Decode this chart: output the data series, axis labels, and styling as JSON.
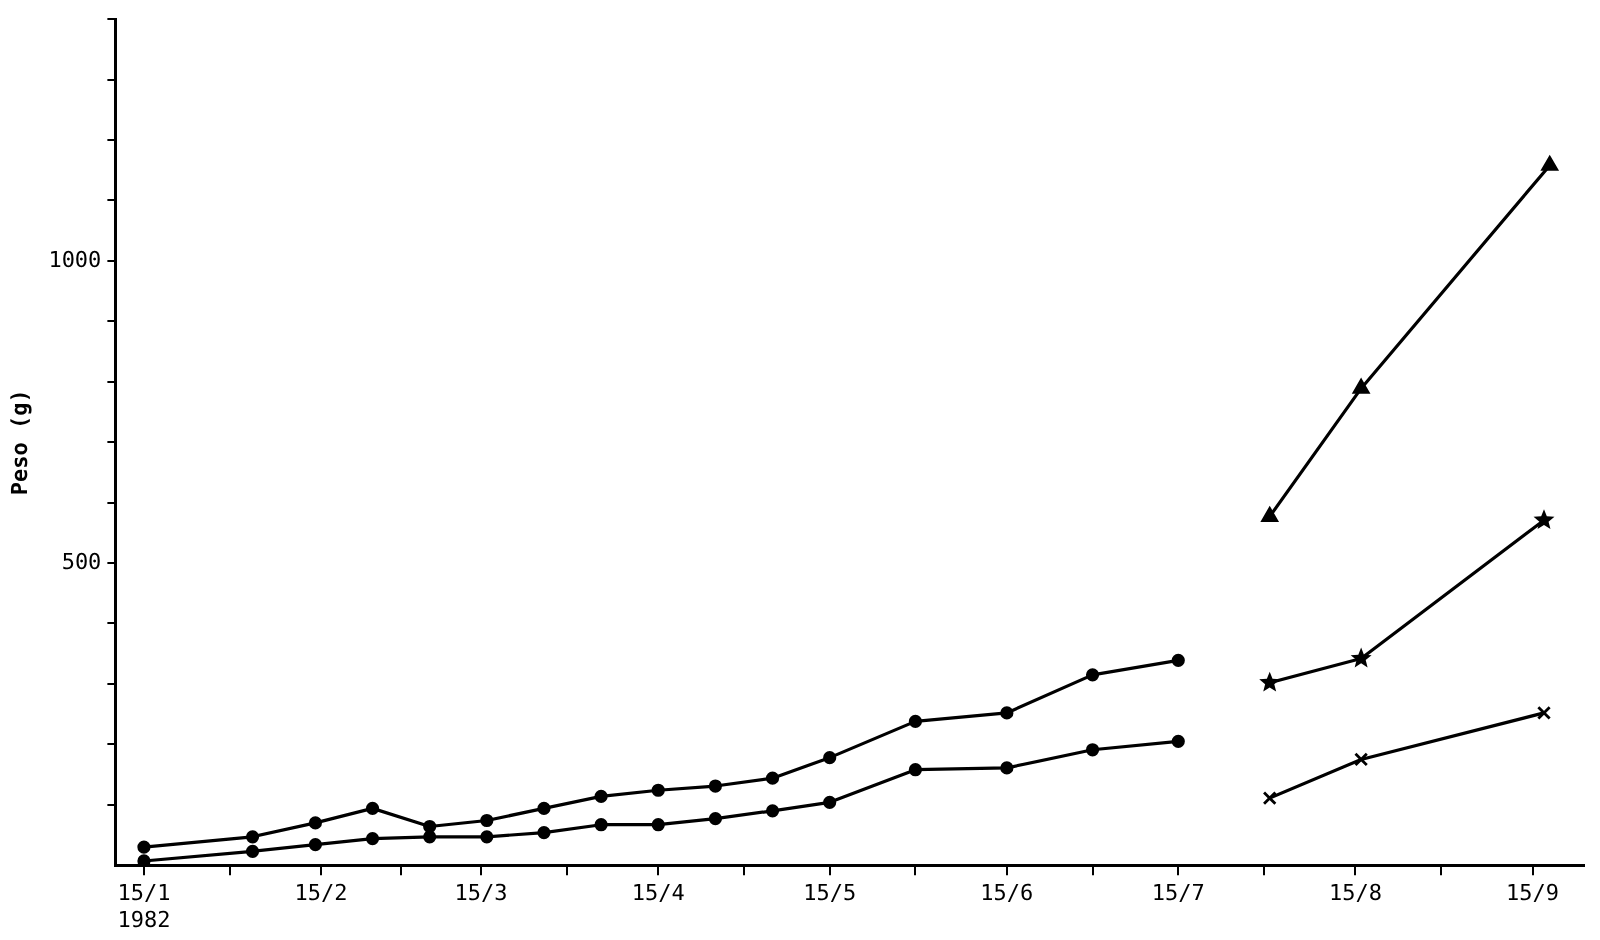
{
  "chart_data": {
    "type": "line",
    "ylabel": "Peso (g)",
    "xlim": [
      "1982-01-10",
      "1982-09-24"
    ],
    "xticks": [
      {
        "value": "1982-01-15",
        "label": "15/1\n1982"
      },
      {
        "value": "1982-01-30",
        "label": null
      },
      {
        "value": "1982-02-15",
        "label": "15/2"
      },
      {
        "value": "1982-03-01",
        "label": null
      },
      {
        "value": "1982-03-15",
        "label": "15/3"
      },
      {
        "value": "1982-03-30",
        "label": null
      },
      {
        "value": "1982-04-15",
        "label": "15/4"
      },
      {
        "value": "1982-04-30",
        "label": null
      },
      {
        "value": "1982-05-15",
        "label": "15/5"
      },
      {
        "value": "1982-05-30",
        "label": null
      },
      {
        "value": "1982-06-15",
        "label": "15/6"
      },
      {
        "value": "1982-06-30",
        "label": null
      },
      {
        "value": "1982-07-15",
        "label": "15/7"
      },
      {
        "value": "1982-07-30",
        "label": null
      },
      {
        "value": "1982-08-15",
        "label": "15/8"
      },
      {
        "value": "1982-08-30",
        "label": null
      },
      {
        "value": "1982-09-15",
        "label": "15/9"
      }
    ],
    "ylim": [
      0,
      1400
    ],
    "yticks": [
      {
        "value": 100,
        "label": null
      },
      {
        "value": 200,
        "label": null
      },
      {
        "value": 300,
        "label": null
      },
      {
        "value": 400,
        "label": null
      },
      500,
      {
        "value": 600,
        "label": null
      },
      {
        "value": 700,
        "label": null
      },
      {
        "value": 800,
        "label": null
      },
      {
        "value": 900,
        "label": null
      },
      1000,
      {
        "value": 1100,
        "label": null
      },
      {
        "value": 1200,
        "label": null
      },
      {
        "value": 1300,
        "label": null
      },
      {
        "value": 1400,
        "label": null
      }
    ],
    "grid": false,
    "legend": false,
    "line_style": "solid",
    "series": [
      {
        "color": "#000000",
        "marker": "circle",
        "x": [
          "1982-01-15",
          "1982-02-03",
          "1982-02-14",
          "1982-02-24",
          "1982-03-06",
          "1982-03-16",
          "1982-03-26",
          "1982-04-05",
          "1982-04-15",
          "1982-04-25",
          "1982-05-05",
          "1982-05-15",
          "1982-05-30",
          "1982-06-15",
          "1982-06-30",
          "1982-07-15"
        ],
        "values": [
          30,
          47,
          70,
          94,
          64,
          74,
          94,
          114,
          124,
          131,
          144,
          178,
          238,
          252,
          315,
          339
        ]
      },
      {
        "color": "#000000",
        "marker": "circle",
        "x": [
          "1982-01-15",
          "1982-02-03",
          "1982-02-14",
          "1982-02-24",
          "1982-03-06",
          "1982-03-16",
          "1982-03-26",
          "1982-04-05",
          "1982-04-15",
          "1982-04-25",
          "1982-05-05",
          "1982-05-15",
          "1982-05-30",
          "1982-06-15",
          "1982-06-30",
          "1982-07-15"
        ],
        "values": [
          7,
          23,
          34,
          44,
          47,
          47,
          54,
          67,
          67,
          77,
          90,
          104,
          158,
          161,
          191,
          205
        ]
      },
      {
        "color": "#000000",
        "marker": "triangle",
        "x": [
          "1982-07-31",
          "1982-08-16",
          "1982-09-18"
        ],
        "values": [
          577,
          789,
          1158
        ]
      },
      {
        "color": "#000000",
        "marker": "star",
        "x": [
          "1982-07-31",
          "1982-08-16",
          "1982-09-17"
        ],
        "values": [
          302,
          342,
          571
        ]
      },
      {
        "color": "#000000",
        "marker": "cross",
        "x": [
          "1982-07-31",
          "1982-08-16",
          "1982-09-17"
        ],
        "values": [
          111,
          175,
          252
        ]
      }
    ]
  }
}
